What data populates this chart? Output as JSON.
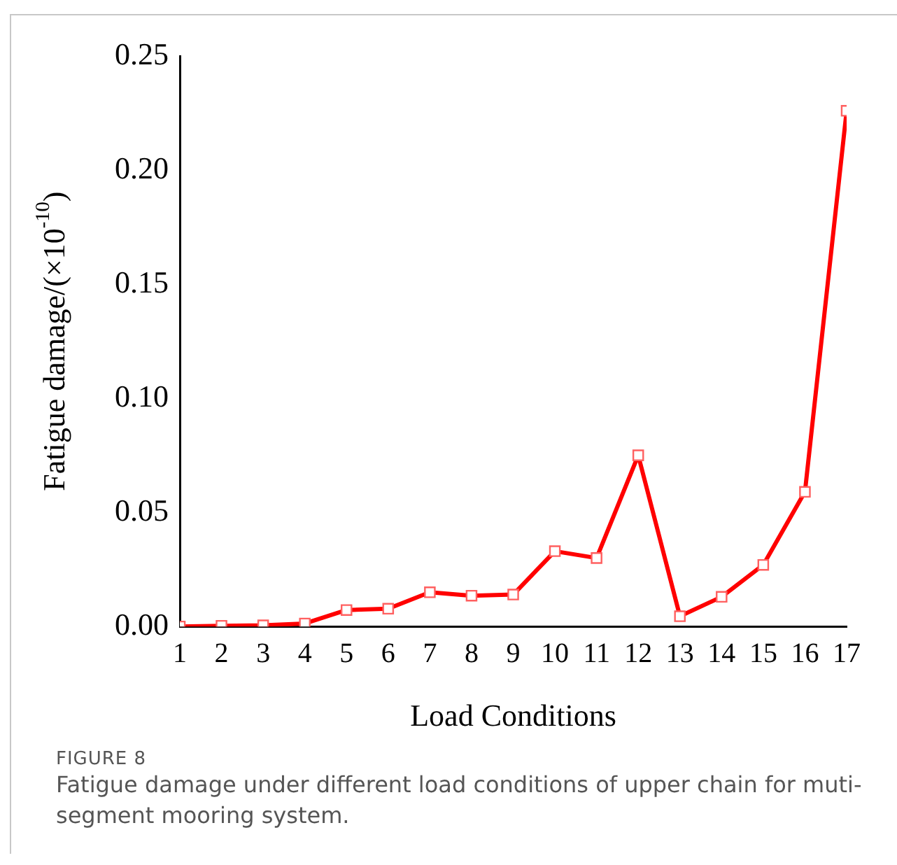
{
  "chart_data": {
    "type": "line",
    "xlabel": "Load Conditions",
    "ylabel": "Fatigue damage/(×10$^{-10}$)",
    "x": [
      1,
      2,
      3,
      4,
      5,
      6,
      7,
      8,
      9,
      10,
      11,
      12,
      13,
      14,
      15,
      16,
      17
    ],
    "series": [
      {
        "color": "#ff0000",
        "values": [
          0.0,
          0.0003,
          0.0005,
          0.0013,
          0.0072,
          0.0078,
          0.015,
          0.0135,
          0.014,
          0.033,
          0.03,
          0.075,
          0.0045,
          0.013,
          0.027,
          0.059,
          0.226
        ]
      }
    ],
    "xlim": [
      1,
      17
    ],
    "xticks": [
      1,
      2,
      3,
      4,
      5,
      6,
      7,
      8,
      9,
      10,
      11,
      12,
      13,
      14,
      15,
      16,
      17
    ],
    "ylim": [
      0,
      0.25
    ],
    "yticks": [
      {
        "value": 0,
        "label": "0.00"
      },
      {
        "value": 0.05,
        "label": "0.05"
      },
      {
        "value": 0.1,
        "label": "0.10"
      },
      {
        "value": 0.15,
        "label": "0.15"
      },
      {
        "value": 0.2,
        "label": "0.20"
      },
      {
        "value": 0.25,
        "label": "0.25"
      }
    ],
    "marker": "square",
    "line_style": "solid",
    "grid": false,
    "legend": false,
    "annotations": [
      "FIGURE 8",
      "Fatigue damage under different load conditions of upper chain for muti-segment mooring system."
    ]
  }
}
